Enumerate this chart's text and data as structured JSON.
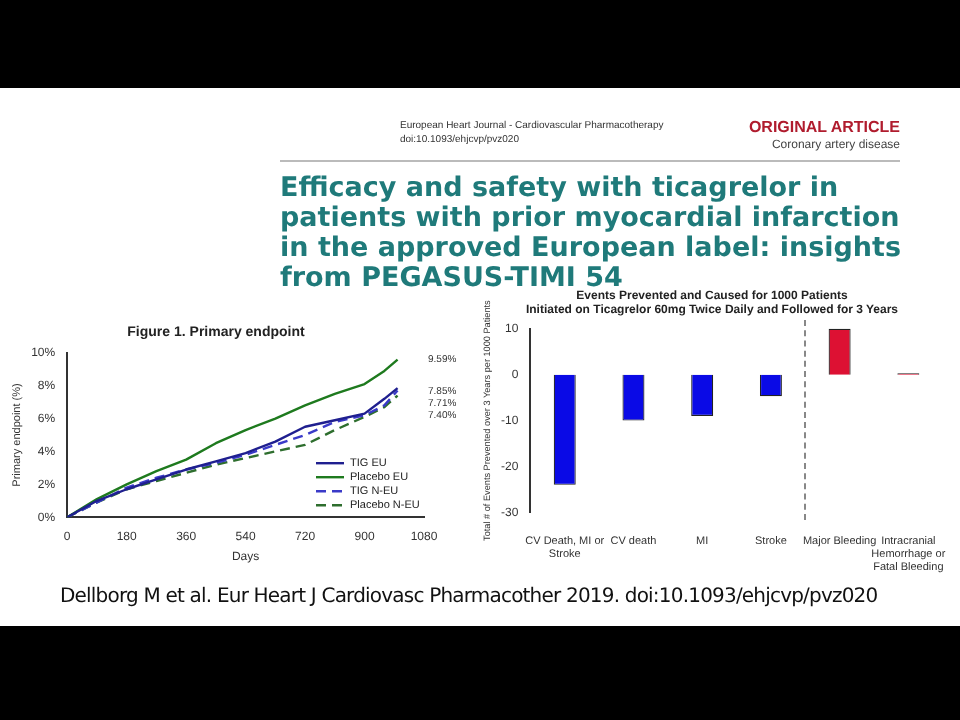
{
  "chart_data": [
    {
      "type": "other",
      "title": "Efficacy and safety with ticagrelor in patients with prior myocardial infarction in the approved European label: insights from PEGASUS-TIMI 54",
      "annotations": [
        "European Heart Journal - Cardiovascular Pharmacotherapy",
        "doi:10.1093/ehjcvp/pvz020",
        "ORIGINAL ARTICLE",
        "Coronary artery disease",
        "Dellborg M et al. Eur Heart J Cardiovasc Pharmacother 2019. doi:10.1093/ehjcvp/pvz020"
      ]
    },
    {
      "type": "line",
      "title": "Figure 1. Primary endpoint",
      "xlabel": "Days",
      "ylabel": "Primary endpoint (%)",
      "xlim": [
        0,
        1080
      ],
      "xticks": [
        0,
        180,
        360,
        540,
        720,
        900,
        1080
      ],
      "ylim": [
        0,
        10
      ],
      "yticks": [
        {
          "value": 0,
          "label": "0%"
        },
        {
          "value": 2,
          "label": "2%"
        },
        {
          "value": 4,
          "label": "4%"
        },
        {
          "value": 6,
          "label": "6%"
        },
        {
          "value": 8,
          "label": "8%"
        },
        {
          "value": 10,
          "label": "10%"
        }
      ],
      "grid": false,
      "legend": "bottom right",
      "marker": "none",
      "series": [
        {
          "name": "TIG EU",
          "color": "#1f1f8f",
          "line_style": "solid",
          "x": [
            0,
            90,
            180,
            270,
            360,
            450,
            540,
            630,
            720,
            810,
            900,
            960,
            1000
          ],
          "values": [
            0,
            1.0,
            1.7,
            2.3,
            2.9,
            3.4,
            3.9,
            4.6,
            5.5,
            5.9,
            6.3,
            7.2,
            7.85
          ]
        },
        {
          "name": "Placebo EU",
          "color": "#1e7a1e",
          "line_style": "solid",
          "x": [
            0,
            90,
            180,
            270,
            360,
            450,
            540,
            630,
            720,
            810,
            900,
            960,
            1000
          ],
          "values": [
            0,
            1.1,
            2.0,
            2.8,
            3.5,
            4.5,
            5.3,
            6.0,
            6.8,
            7.5,
            8.1,
            8.9,
            9.59
          ]
        },
        {
          "name": "TIG N-EU",
          "color": "#3a3ac8",
          "line_style": "dashed",
          "x": [
            0,
            90,
            180,
            270,
            360,
            450,
            540,
            630,
            720,
            810,
            900,
            960,
            1000
          ],
          "values": [
            0,
            0.9,
            1.8,
            2.4,
            2.9,
            3.3,
            3.8,
            4.4,
            5.0,
            5.8,
            6.2,
            6.8,
            7.71
          ]
        },
        {
          "name": "Placebo N-EU",
          "color": "#2e6e2e",
          "line_style": "dashed",
          "x": [
            0,
            90,
            180,
            270,
            360,
            450,
            540,
            630,
            720,
            810,
            900,
            960,
            1000
          ],
          "values": [
            0,
            0.9,
            1.7,
            2.2,
            2.7,
            3.2,
            3.6,
            4.0,
            4.4,
            5.3,
            6.1,
            6.7,
            7.4
          ]
        }
      ],
      "annotations": [
        "9.59%",
        "7.85%",
        "7.71%",
        "7.40%"
      ]
    },
    {
      "type": "bar",
      "title": "Events Prevented and Caused for 1000 Patients",
      "subtitle": "Initiated on Ticagrelor 60mg Twice Daily and Followed for 3 Years",
      "ylabel": "Total # of Events Prevented over 3 Years per 1000 Patients",
      "categories": [
        "CV Death, MI or Stroke",
        "CV death",
        "MI",
        "Stroke",
        "Major Bleeding",
        "Intracranial Hemorrhage or Fatal Bleeding"
      ],
      "values": [
        -24,
        -10,
        -9,
        -4.7,
        10,
        0.3
      ],
      "colors": [
        "#0a0ae6",
        "#0a0ae6",
        "#0a0ae6",
        "#0a0ae6",
        "#dd1133",
        "#dd1133"
      ],
      "ylim": [
        -30,
        10
      ],
      "yticks": [
        -30,
        -20,
        -10,
        0,
        10
      ],
      "grid": false
    }
  ]
}
